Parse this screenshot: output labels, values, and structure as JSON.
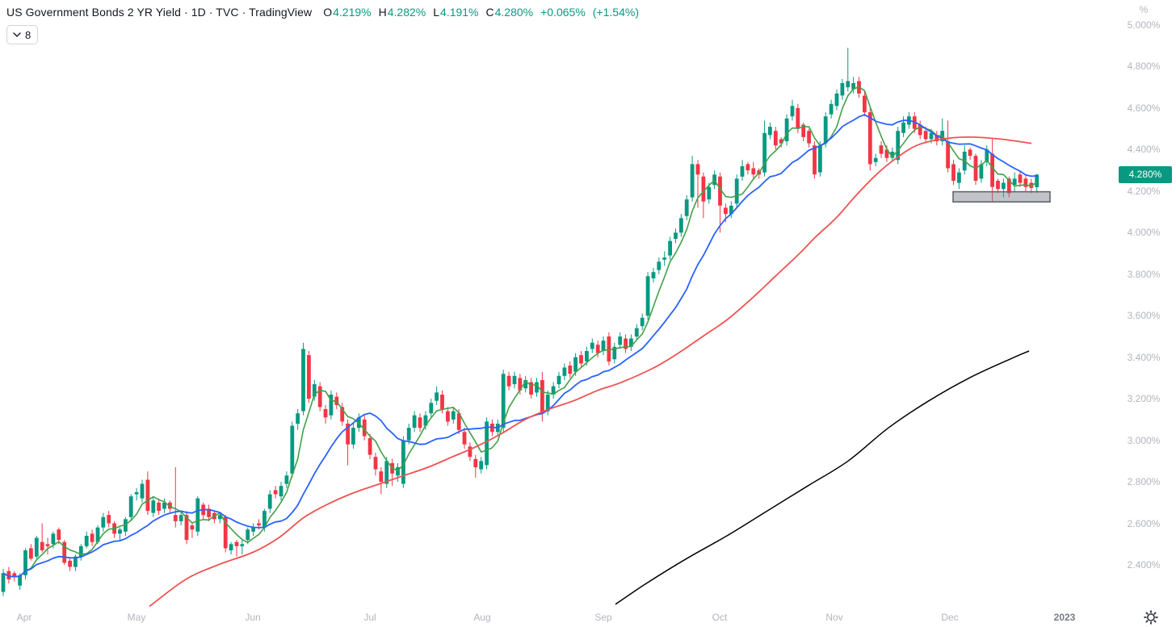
{
  "header": {
    "title": "US Government Bonds 2 YR Yield · 1D · TVC · TradingView",
    "ohlc": {
      "o_label": "O",
      "o": "4.219%",
      "h_label": "H",
      "h": "4.282%",
      "l_label": "L",
      "l": "4.191%",
      "c_label": "C",
      "c": "4.280%",
      "change_abs": "+0.065%",
      "change_pct": "(+1.54%)",
      "value_color": "#089981",
      "label_color": "#131722"
    },
    "legend_button": {
      "count": "8",
      "icon": "chevron-down-icon"
    }
  },
  "price_axis": {
    "unit": "%",
    "labels": [
      {
        "text": "5.000%",
        "value": 5.0
      },
      {
        "text": "4.800%",
        "value": 4.8
      },
      {
        "text": "4.600%",
        "value": 4.6
      },
      {
        "text": "4.400%",
        "value": 4.4
      },
      {
        "text": "4.200%",
        "value": 4.2
      },
      {
        "text": "4.000%",
        "value": 4.0
      },
      {
        "text": "3.800%",
        "value": 3.8
      },
      {
        "text": "3.600%",
        "value": 3.6
      },
      {
        "text": "3.400%",
        "value": 3.4
      },
      {
        "text": "3.200%",
        "value": 3.2
      },
      {
        "text": "3.000%",
        "value": 3.0
      },
      {
        "text": "2.800%",
        "value": 2.8
      },
      {
        "text": "2.600%",
        "value": 2.6
      },
      {
        "text": "2.400%",
        "value": 2.4
      }
    ],
    "current": {
      "text": "4.280%",
      "value": 4.28,
      "bg": "#089981"
    }
  },
  "time_axis": {
    "labels": [
      {
        "text": "Apr",
        "x": 30
      },
      {
        "text": "May",
        "x": 169
      },
      {
        "text": "Jun",
        "x": 313
      },
      {
        "text": "Jul",
        "x": 458
      },
      {
        "text": "Aug",
        "x": 597
      },
      {
        "text": "Sep",
        "x": 747
      },
      {
        "text": "Oct",
        "x": 891
      },
      {
        "text": "Nov",
        "x": 1033
      },
      {
        "text": "Dec",
        "x": 1176
      },
      {
        "text": "2023",
        "x": 1318,
        "year": true
      }
    ]
  },
  "chart_data": {
    "type": "candlestick",
    "title": "US Government Bonds 2 YR Yield",
    "interval": "1D",
    "exchange": "TVC",
    "unit": "%",
    "y_range": [
      2.2,
      5.05
    ],
    "x_start": 4,
    "x_step": 6.88,
    "up_color": "#089981",
    "down_color": "#f23645",
    "candles": [
      [
        2.27,
        2.38,
        2.25,
        2.36
      ],
      [
        2.37,
        2.39,
        2.31,
        2.33
      ],
      [
        2.36,
        2.37,
        2.32,
        2.34
      ],
      [
        2.3,
        2.36,
        2.28,
        2.35
      ],
      [
        2.35,
        2.48,
        2.33,
        2.47
      ],
      [
        2.48,
        2.5,
        2.42,
        2.43
      ],
      [
        2.44,
        2.54,
        2.43,
        2.53
      ],
      [
        2.51,
        2.6,
        2.46,
        2.47
      ],
      [
        2.5,
        2.53,
        2.45,
        2.49
      ],
      [
        2.5,
        2.56,
        2.48,
        2.55
      ],
      [
        2.57,
        2.58,
        2.5,
        2.52
      ],
      [
        2.51,
        2.52,
        2.4,
        2.41
      ],
      [
        2.42,
        2.43,
        2.37,
        2.39
      ],
      [
        2.39,
        2.45,
        2.37,
        2.44
      ],
      [
        2.44,
        2.5,
        2.42,
        2.49
      ],
      [
        2.49,
        2.56,
        2.48,
        2.54
      ],
      [
        2.55,
        2.57,
        2.49,
        2.51
      ],
      [
        2.51,
        2.59,
        2.5,
        2.58
      ],
      [
        2.58,
        2.65,
        2.56,
        2.63
      ],
      [
        2.64,
        2.66,
        2.58,
        2.6
      ],
      [
        2.6,
        2.61,
        2.53,
        2.55
      ],
      [
        2.55,
        2.58,
        2.52,
        2.57
      ],
      [
        2.56,
        2.63,
        2.54,
        2.62
      ],
      [
        2.63,
        2.74,
        2.61,
        2.73
      ],
      [
        2.74,
        2.77,
        2.71,
        2.75
      ],
      [
        2.72,
        2.81,
        2.7,
        2.79
      ],
      [
        2.81,
        2.85,
        2.64,
        2.66
      ],
      [
        2.65,
        2.73,
        2.63,
        2.71
      ],
      [
        2.7,
        2.72,
        2.64,
        2.66
      ],
      [
        2.67,
        2.72,
        2.65,
        2.7
      ],
      [
        2.7,
        2.71,
        2.65,
        2.67
      ],
      [
        2.64,
        2.87,
        2.58,
        2.61
      ],
      [
        2.61,
        2.66,
        2.59,
        2.64
      ],
      [
        2.64,
        2.66,
        2.5,
        2.52
      ],
      [
        2.59,
        2.6,
        2.53,
        2.57
      ],
      [
        2.56,
        2.73,
        2.54,
        2.72
      ],
      [
        2.69,
        2.7,
        2.62,
        2.64
      ],
      [
        2.67,
        2.69,
        2.61,
        2.63
      ],
      [
        2.65,
        2.66,
        2.6,
        2.62
      ],
      [
        2.62,
        2.65,
        2.6,
        2.64
      ],
      [
        2.63,
        2.64,
        2.46,
        2.48
      ],
      [
        2.47,
        2.51,
        2.45,
        2.5
      ],
      [
        2.51,
        2.52,
        2.44,
        2.49
      ],
      [
        2.49,
        2.52,
        2.45,
        2.5
      ],
      [
        2.52,
        2.58,
        2.5,
        2.57
      ],
      [
        2.56,
        2.6,
        2.54,
        2.58
      ],
      [
        2.6,
        2.62,
        2.57,
        2.59
      ],
      [
        2.58,
        2.67,
        2.56,
        2.66
      ],
      [
        2.67,
        2.76,
        2.65,
        2.74
      ],
      [
        2.76,
        2.78,
        2.72,
        2.74
      ],
      [
        2.73,
        2.8,
        2.71,
        2.78
      ],
      [
        2.79,
        2.85,
        2.77,
        2.83
      ],
      [
        2.84,
        3.09,
        2.82,
        3.07
      ],
      [
        3.08,
        3.15,
        3.05,
        3.13
      ],
      [
        3.14,
        3.47,
        3.12,
        3.44
      ],
      [
        3.41,
        3.43,
        3.18,
        3.2
      ],
      [
        3.21,
        3.29,
        3.19,
        3.27
      ],
      [
        3.26,
        3.28,
        3.14,
        3.16
      ],
      [
        3.15,
        3.17,
        3.08,
        3.11
      ],
      [
        3.12,
        3.24,
        3.1,
        3.22
      ],
      [
        3.21,
        3.23,
        3.15,
        3.17
      ],
      [
        3.16,
        3.18,
        3.07,
        3.09
      ],
      [
        3.08,
        3.1,
        2.88,
        2.98
      ],
      [
        2.98,
        3.08,
        2.96,
        3.06
      ],
      [
        3.06,
        3.13,
        3.04,
        3.11
      ],
      [
        3.1,
        3.12,
        3.0,
        3.02
      ],
      [
        3.01,
        3.03,
        2.91,
        2.93
      ],
      [
        2.92,
        2.94,
        2.83,
        2.86
      ],
      [
        2.85,
        2.87,
        2.74,
        2.8
      ],
      [
        2.79,
        2.92,
        2.77,
        2.9
      ],
      [
        2.89,
        2.91,
        2.78,
        2.84
      ],
      [
        2.83,
        2.89,
        2.8,
        2.87
      ],
      [
        2.79,
        3.02,
        2.77,
        3.0
      ],
      [
        3.0,
        3.08,
        2.98,
        3.06
      ],
      [
        3.06,
        3.14,
        3.04,
        3.12
      ],
      [
        3.11,
        3.13,
        3.04,
        3.06
      ],
      [
        3.07,
        3.14,
        3.05,
        3.12
      ],
      [
        3.13,
        3.2,
        3.11,
        3.18
      ],
      [
        3.19,
        3.26,
        3.17,
        3.23
      ],
      [
        3.22,
        3.24,
        3.13,
        3.15
      ],
      [
        3.14,
        3.16,
        3.07,
        3.09
      ],
      [
        3.1,
        3.16,
        3.08,
        3.14
      ],
      [
        3.13,
        3.15,
        3.03,
        3.05
      ],
      [
        3.04,
        3.06,
        2.96,
        2.98
      ],
      [
        2.97,
        2.99,
        2.9,
        2.92
      ],
      [
        2.91,
        2.93,
        2.82,
        2.87
      ],
      [
        2.86,
        2.92,
        2.84,
        2.9
      ],
      [
        2.88,
        3.11,
        2.86,
        3.09
      ],
      [
        3.08,
        3.1,
        3.02,
        3.04
      ],
      [
        3.04,
        3.1,
        3.02,
        3.08
      ],
      [
        3.06,
        3.34,
        3.04,
        3.32
      ],
      [
        3.31,
        3.33,
        3.24,
        3.26
      ],
      [
        3.27,
        3.33,
        3.25,
        3.31
      ],
      [
        3.3,
        3.32,
        3.22,
        3.24
      ],
      [
        3.25,
        3.31,
        3.23,
        3.29
      ],
      [
        3.28,
        3.3,
        3.2,
        3.22
      ],
      [
        3.23,
        3.3,
        3.21,
        3.28
      ],
      [
        3.29,
        3.33,
        3.09,
        3.13
      ],
      [
        3.14,
        3.24,
        3.12,
        3.22
      ],
      [
        3.22,
        3.28,
        3.2,
        3.26
      ],
      [
        3.27,
        3.33,
        3.25,
        3.31
      ],
      [
        3.31,
        3.37,
        3.29,
        3.35
      ],
      [
        3.36,
        3.38,
        3.3,
        3.32
      ],
      [
        3.33,
        3.42,
        3.31,
        3.4
      ],
      [
        3.41,
        3.43,
        3.35,
        3.37
      ],
      [
        3.38,
        3.45,
        3.36,
        3.43
      ],
      [
        3.44,
        3.49,
        3.42,
        3.47
      ],
      [
        3.46,
        3.48,
        3.4,
        3.42
      ],
      [
        3.43,
        3.5,
        3.41,
        3.48
      ],
      [
        3.5,
        3.52,
        3.36,
        3.38
      ],
      [
        3.39,
        3.47,
        3.37,
        3.45
      ],
      [
        3.46,
        3.52,
        3.44,
        3.5
      ],
      [
        3.49,
        3.51,
        3.42,
        3.44
      ],
      [
        3.45,
        3.51,
        3.43,
        3.49
      ],
      [
        3.5,
        3.56,
        3.48,
        3.54
      ],
      [
        3.55,
        3.61,
        3.53,
        3.59
      ],
      [
        3.6,
        3.81,
        3.58,
        3.79
      ],
      [
        3.78,
        3.83,
        3.76,
        3.81
      ],
      [
        3.82,
        3.88,
        3.8,
        3.86
      ],
      [
        3.87,
        3.91,
        3.84,
        3.88
      ],
      [
        3.89,
        3.98,
        3.87,
        3.96
      ],
      [
        3.97,
        4.02,
        3.95,
        4.0
      ],
      [
        4.0,
        4.09,
        3.98,
        4.07
      ],
      [
        4.08,
        4.18,
        4.06,
        4.16
      ],
      [
        4.17,
        4.37,
        4.15,
        4.33
      ],
      [
        4.33,
        4.35,
        4.12,
        4.28
      ],
      [
        4.27,
        4.29,
        4.07,
        4.15
      ],
      [
        4.16,
        4.24,
        4.14,
        4.22
      ],
      [
        4.23,
        4.3,
        4.21,
        4.28
      ],
      [
        4.27,
        4.29,
        4.0,
        4.13
      ],
      [
        4.12,
        4.14,
        4.05,
        4.09
      ],
      [
        4.09,
        4.15,
        4.07,
        4.13
      ],
      [
        4.14,
        4.28,
        4.12,
        4.26
      ],
      [
        4.27,
        4.35,
        4.25,
        4.32
      ],
      [
        4.33,
        4.34,
        4.28,
        4.3
      ],
      [
        4.31,
        4.34,
        4.26,
        4.28
      ],
      [
        4.3,
        4.31,
        4.26,
        4.28
      ],
      [
        4.29,
        4.54,
        4.27,
        4.48
      ],
      [
        4.47,
        4.53,
        4.45,
        4.51
      ],
      [
        4.49,
        4.51,
        4.4,
        4.42
      ],
      [
        4.45,
        4.46,
        4.41,
        4.43
      ],
      [
        4.44,
        4.57,
        4.42,
        4.55
      ],
      [
        4.56,
        4.64,
        4.54,
        4.61
      ],
      [
        4.6,
        4.62,
        4.48,
        4.5
      ],
      [
        4.52,
        4.53,
        4.44,
        4.46
      ],
      [
        4.49,
        4.5,
        4.41,
        4.43
      ],
      [
        4.42,
        4.44,
        4.26,
        4.28
      ],
      [
        4.29,
        4.44,
        4.27,
        4.42
      ],
      [
        4.43,
        4.58,
        4.41,
        4.56
      ],
      [
        4.57,
        4.64,
        4.55,
        4.62
      ],
      [
        4.61,
        4.69,
        4.59,
        4.67
      ],
      [
        4.66,
        4.74,
        4.64,
        4.72
      ],
      [
        4.7,
        4.89,
        4.68,
        4.73
      ],
      [
        4.69,
        4.75,
        4.67,
        4.72
      ],
      [
        4.73,
        4.75,
        4.65,
        4.67
      ],
      [
        4.66,
        4.68,
        4.56,
        4.58
      ],
      [
        4.58,
        4.6,
        4.3,
        4.33
      ],
      [
        4.34,
        4.38,
        4.32,
        4.36
      ],
      [
        4.42,
        4.44,
        4.36,
        4.38
      ],
      [
        4.4,
        4.42,
        4.34,
        4.36
      ],
      [
        4.36,
        4.41,
        4.34,
        4.39
      ],
      [
        4.35,
        4.51,
        4.33,
        4.49
      ],
      [
        4.48,
        4.56,
        4.46,
        4.53
      ],
      [
        4.52,
        4.58,
        4.5,
        4.56
      ],
      [
        4.56,
        4.58,
        4.48,
        4.5
      ],
      [
        4.52,
        4.54,
        4.45,
        4.47
      ],
      [
        4.49,
        4.51,
        4.43,
        4.45
      ],
      [
        4.45,
        4.5,
        4.43,
        4.48
      ],
      [
        4.47,
        4.49,
        4.42,
        4.44
      ],
      [
        4.44,
        4.55,
        4.42,
        4.49
      ],
      [
        4.44,
        4.54,
        4.29,
        4.31
      ],
      [
        4.33,
        4.35,
        4.23,
        4.25
      ],
      [
        4.24,
        4.31,
        4.21,
        4.29
      ],
      [
        4.3,
        4.42,
        4.28,
        4.39
      ],
      [
        4.4,
        4.41,
        4.35,
        4.37
      ],
      [
        4.37,
        4.38,
        4.23,
        4.25
      ],
      [
        4.26,
        4.35,
        4.24,
        4.33
      ],
      [
        4.34,
        4.42,
        4.32,
        4.4
      ],
      [
        4.38,
        4.45,
        4.15,
        4.22
      ],
      [
        4.25,
        4.26,
        4.19,
        4.21
      ],
      [
        4.21,
        4.26,
        4.17,
        4.24
      ],
      [
        4.26,
        4.27,
        4.17,
        4.19
      ],
      [
        4.23,
        4.29,
        4.2,
        4.26
      ],
      [
        4.28,
        4.3,
        4.22,
        4.24
      ],
      [
        4.26,
        4.28,
        4.2,
        4.22
      ],
      [
        4.24,
        4.26,
        4.19,
        4.215
      ],
      [
        4.219,
        4.282,
        4.191,
        4.28
      ]
    ],
    "ma_fast": {
      "name": "fast moving average",
      "color": "#43a047",
      "period": 5
    },
    "ma_mid": {
      "name": "mid moving average",
      "color": "#2962ff",
      "period": 15
    },
    "ma_slow": {
      "name": "slow moving average",
      "color": "#ef5350",
      "points": [
        [
          185,
          2.2
        ],
        [
          230,
          2.33
        ],
        [
          270,
          2.4
        ],
        [
          313,
          2.46
        ],
        [
          345,
          2.53
        ],
        [
          377,
          2.63
        ],
        [
          410,
          2.7
        ],
        [
          440,
          2.75
        ],
        [
          470,
          2.79
        ],
        [
          500,
          2.83
        ],
        [
          530,
          2.87
        ],
        [
          560,
          2.92
        ],
        [
          590,
          2.97
        ],
        [
          620,
          3.03
        ],
        [
          650,
          3.1
        ],
        [
          680,
          3.15
        ],
        [
          710,
          3.19
        ],
        [
          740,
          3.24
        ],
        [
          770,
          3.28
        ],
        [
          810,
          3.35
        ],
        [
          840,
          3.42
        ],
        [
          870,
          3.5
        ],
        [
          900,
          3.58
        ],
        [
          930,
          3.68
        ],
        [
          960,
          3.79
        ],
        [
          990,
          3.9
        ],
        [
          1010,
          3.98
        ],
        [
          1035,
          4.07
        ],
        [
          1060,
          4.18
        ],
        [
          1085,
          4.28
        ],
        [
          1110,
          4.36
        ],
        [
          1135,
          4.42
        ],
        [
          1165,
          4.45
        ],
        [
          1200,
          4.46
        ],
        [
          1240,
          4.45
        ],
        [
          1277,
          4.43
        ]
      ]
    },
    "ma_long": {
      "name": "long moving average",
      "color": "#000000",
      "points": [
        [
          762,
          2.21
        ],
        [
          800,
          2.31
        ],
        [
          850,
          2.43
        ],
        [
          900,
          2.54
        ],
        [
          950,
          2.66
        ],
        [
          1000,
          2.78
        ],
        [
          1050,
          2.9
        ],
        [
          1100,
          3.06
        ],
        [
          1150,
          3.19
        ],
        [
          1200,
          3.3
        ],
        [
          1250,
          3.39
        ],
        [
          1274,
          3.43
        ]
      ]
    },
    "highlight_box": {
      "x1": 1180,
      "x2": 1300,
      "v_top": 4.197,
      "v_bottom": 4.148,
      "fill": "rgba(120,123,134,0.45)",
      "stroke": "#62656e"
    }
  }
}
